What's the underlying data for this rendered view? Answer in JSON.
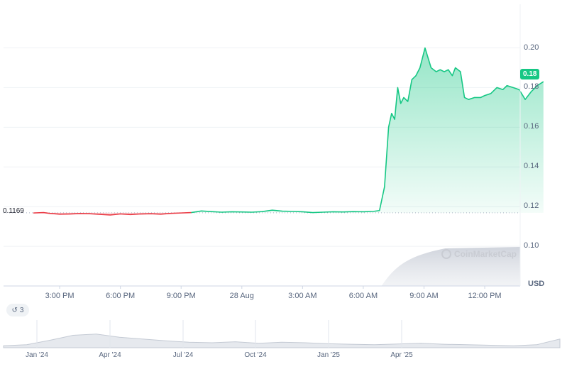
{
  "chart_data": {
    "type": "area",
    "currency": "USD",
    "current_price_badge": "0.18",
    "reference_line_label": "0.1169",
    "reference_value": 0.1169,
    "y_ticks": [
      "0.20",
      "0.18",
      "0.16",
      "0.14",
      "0.12",
      "0.10"
    ],
    "y_tick_values": [
      0.2,
      0.18,
      0.16,
      0.14,
      0.12,
      0.1
    ],
    "ylim": [
      0.08,
      0.222
    ],
    "x_ticks": [
      "3:00 PM",
      "6:00 PM",
      "9:00 PM",
      "28 Aug",
      "3:00 AM",
      "6:00 AM",
      "9:00 AM",
      "12:00 PM"
    ],
    "x_tick_hours": [
      0,
      3,
      6,
      9,
      12,
      15,
      18,
      21
    ],
    "x_hours_range": [
      -1.3,
      22.4
    ],
    "series": [
      {
        "points": [
          [
            -1.3,
            0.1168
          ],
          [
            -0.8,
            0.117
          ],
          [
            -0.5,
            0.1166
          ],
          [
            0.0,
            0.1162
          ],
          [
            0.5,
            0.1163
          ],
          [
            1.0,
            0.1165
          ],
          [
            1.5,
            0.1164
          ],
          [
            2.0,
            0.1161
          ],
          [
            2.5,
            0.1158
          ],
          [
            3.0,
            0.1163
          ],
          [
            3.5,
            0.116
          ],
          [
            4.0,
            0.1163
          ],
          [
            4.5,
            0.1164
          ],
          [
            5.0,
            0.1162
          ],
          [
            5.5,
            0.1166
          ],
          [
            6.0,
            0.1168
          ],
          [
            6.5,
            0.117
          ],
          [
            7.0,
            0.1178
          ],
          [
            7.5,
            0.1175
          ],
          [
            8.0,
            0.1172
          ],
          [
            8.5,
            0.1174
          ],
          [
            9.0,
            0.1173
          ],
          [
            9.5,
            0.1172
          ],
          [
            10.0,
            0.1175
          ],
          [
            10.5,
            0.1182
          ],
          [
            11.0,
            0.1177
          ],
          [
            11.5,
            0.1176
          ],
          [
            12.0,
            0.1174
          ],
          [
            12.5,
            0.117
          ],
          [
            13.0,
            0.1172
          ],
          [
            13.5,
            0.1174
          ],
          [
            14.0,
            0.1173
          ],
          [
            14.5,
            0.1175
          ],
          [
            15.0,
            0.1174
          ],
          [
            15.5,
            0.1176
          ],
          [
            15.8,
            0.118
          ],
          [
            16.05,
            0.13
          ],
          [
            16.25,
            0.16
          ],
          [
            16.4,
            0.167
          ],
          [
            16.55,
            0.164
          ],
          [
            16.7,
            0.18
          ],
          [
            16.85,
            0.172
          ],
          [
            17.0,
            0.175
          ],
          [
            17.2,
            0.173
          ],
          [
            17.4,
            0.184
          ],
          [
            17.6,
            0.186
          ],
          [
            17.8,
            0.19
          ],
          [
            17.95,
            0.196
          ],
          [
            18.05,
            0.2
          ],
          [
            18.2,
            0.195
          ],
          [
            18.35,
            0.19
          ],
          [
            18.6,
            0.188
          ],
          [
            18.8,
            0.189
          ],
          [
            19.0,
            0.188
          ],
          [
            19.2,
            0.189
          ],
          [
            19.4,
            0.186
          ],
          [
            19.55,
            0.19
          ],
          [
            19.8,
            0.188
          ],
          [
            20.0,
            0.175
          ],
          [
            20.2,
            0.174
          ],
          [
            20.5,
            0.175
          ],
          [
            20.8,
            0.175
          ],
          [
            21.0,
            0.176
          ],
          [
            21.3,
            0.177
          ],
          [
            21.6,
            0.18
          ],
          [
            21.9,
            0.179
          ],
          [
            22.1,
            0.181
          ],
          [
            22.4,
            0.18
          ],
          [
            22.7,
            0.179
          ],
          [
            23.0,
            0.174
          ],
          [
            23.3,
            0.178
          ],
          [
            23.6,
            0.181
          ],
          [
            23.9,
            0.183
          ]
        ]
      }
    ],
    "grid": true,
    "up_color": "#16c784",
    "down_color": "#ea3943"
  },
  "watermark": "CoinMarketCap",
  "history_count": "3",
  "navigator": {
    "labels": [
      "Jan '24",
      "Apr '24",
      "Jul '24",
      "Oct '24",
      "Jan '25",
      "Apr '25"
    ],
    "values": [
      0.08,
      0.12,
      0.3,
      0.5,
      0.55,
      0.42,
      0.35,
      0.28,
      0.22,
      0.2,
      0.24,
      0.18,
      0.22,
      0.2,
      0.16,
      0.14,
      0.12,
      0.15,
      0.18,
      0.14,
      0.12,
      0.1,
      0.08,
      0.12,
      0.35
    ]
  }
}
